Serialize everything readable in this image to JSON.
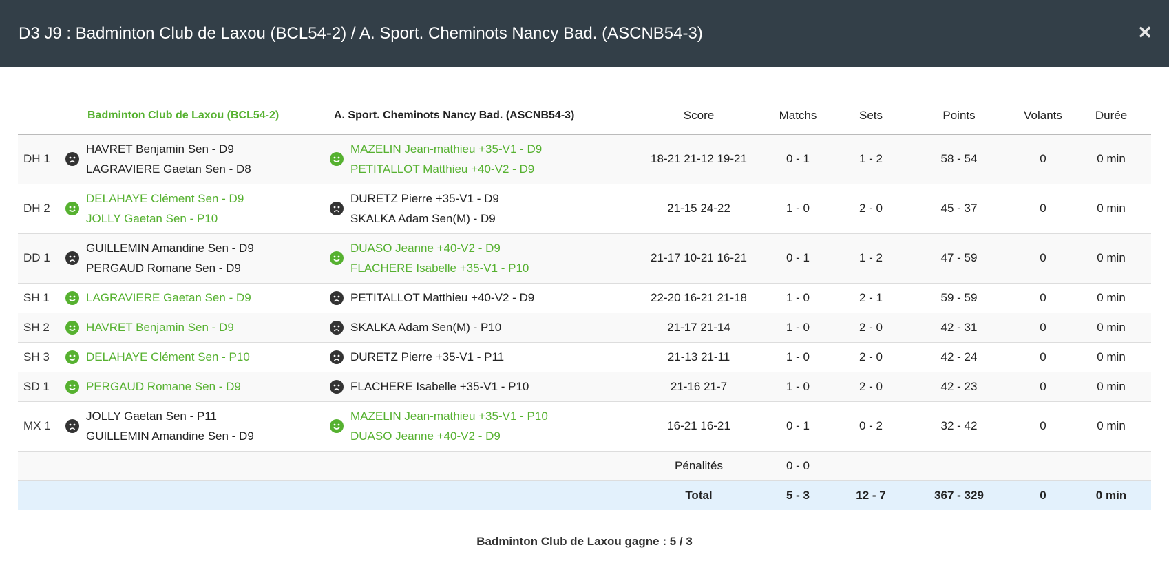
{
  "dialog": {
    "title": "D3 J9 : Badminton Club de Laxou (BCL54-2) / A. Sport. Cheminots Nancy Bad. (ASCNB54-3)",
    "close_icon": "close-icon"
  },
  "colors": {
    "header_bg": "#333f48",
    "winner": "#56b130",
    "loser_icon": "#333333",
    "total_bg": "#e3f1fc"
  },
  "columns": {
    "team1": "Badminton Club de Laxou (BCL54-2)",
    "team2": "A. Sport. Cheminots Nancy Bad. (ASCNB54-3)",
    "score": "Score",
    "matchs": "Matchs",
    "sets": "Sets",
    "points": "Points",
    "volants": "Volants",
    "duree": "Durée"
  },
  "rows": [
    {
      "label": "DH 1",
      "team1": [
        "HAVRET Benjamin Sen - D9",
        "LAGRAVIERE Gaetan Sen - D8"
      ],
      "team2": [
        "MAZELIN Jean-mathieu +35-V1 - D9",
        "PETITALLOT Matthieu +40-V2 - D9"
      ],
      "winner": 2,
      "score": "18-21 21-12 19-21",
      "matchs": "0 - 1",
      "sets": "1 - 2",
      "points": "58 - 54",
      "volants": "0",
      "duree": "0 min"
    },
    {
      "label": "DH 2",
      "team1": [
        "DELAHAYE Clément Sen - D9",
        "JOLLY Gaetan Sen - P10"
      ],
      "team2": [
        "DURETZ Pierre +35-V1 - D9",
        "SKALKA Adam Sen(M) - D9"
      ],
      "winner": 1,
      "score": "21-15 24-22",
      "matchs": "1 - 0",
      "sets": "2 - 0",
      "points": "45 - 37",
      "volants": "0",
      "duree": "0 min"
    },
    {
      "label": "DD 1",
      "team1": [
        "GUILLEMIN Amandine Sen - D9",
        "PERGAUD Romane Sen - D9"
      ],
      "team2": [
        "DUASO Jeanne +40-V2 - D9",
        "FLACHERE Isabelle +35-V1 - P10"
      ],
      "winner": 2,
      "score": "21-17 10-21 16-21",
      "matchs": "0 - 1",
      "sets": "1 - 2",
      "points": "47 - 59",
      "volants": "0",
      "duree": "0 min"
    },
    {
      "label": "SH 1",
      "team1": [
        "LAGRAVIERE Gaetan Sen - D9"
      ],
      "team2": [
        "PETITALLOT Matthieu +40-V2 - D9"
      ],
      "winner": 1,
      "score": "22-20 16-21 21-18",
      "matchs": "1 - 0",
      "sets": "2 - 1",
      "points": "59 - 59",
      "volants": "0",
      "duree": "0 min"
    },
    {
      "label": "SH 2",
      "team1": [
        "HAVRET Benjamin Sen - D9"
      ],
      "team2": [
        "SKALKA Adam Sen(M) - P10"
      ],
      "winner": 1,
      "score": "21-17 21-14",
      "matchs": "1 - 0",
      "sets": "2 - 0",
      "points": "42 - 31",
      "volants": "0",
      "duree": "0 min"
    },
    {
      "label": "SH 3",
      "team1": [
        "DELAHAYE Clément Sen - P10"
      ],
      "team2": [
        "DURETZ Pierre +35-V1 - P11"
      ],
      "winner": 1,
      "score": "21-13 21-11",
      "matchs": "1 - 0",
      "sets": "2 - 0",
      "points": "42 - 24",
      "volants": "0",
      "duree": "0 min"
    },
    {
      "label": "SD 1",
      "team1": [
        "PERGAUD Romane Sen - D9"
      ],
      "team2": [
        "FLACHERE Isabelle +35-V1 - P10"
      ],
      "winner": 1,
      "score": "21-16 21-7",
      "matchs": "1 - 0",
      "sets": "2 - 0",
      "points": "42 - 23",
      "volants": "0",
      "duree": "0 min"
    },
    {
      "label": "MX 1",
      "team1": [
        "JOLLY Gaetan Sen - P11",
        "GUILLEMIN Amandine Sen - D9"
      ],
      "team2": [
        "MAZELIN Jean-mathieu +35-V1 - P10",
        "DUASO Jeanne +40-V2 - D9"
      ],
      "winner": 2,
      "score": "16-21 16-21",
      "matchs": "0 - 1",
      "sets": "0 - 2",
      "points": "32 - 42",
      "volants": "0",
      "duree": "0 min"
    }
  ],
  "penalties": {
    "label": "Pénalités",
    "matchs": "0 - 0"
  },
  "total": {
    "label": "Total",
    "matchs": "5 - 3",
    "sets": "12 - 7",
    "points": "367 - 329",
    "volants": "0",
    "duree": "0 min"
  },
  "result": "Badminton Club de Laxou gagne : 5 / 3"
}
